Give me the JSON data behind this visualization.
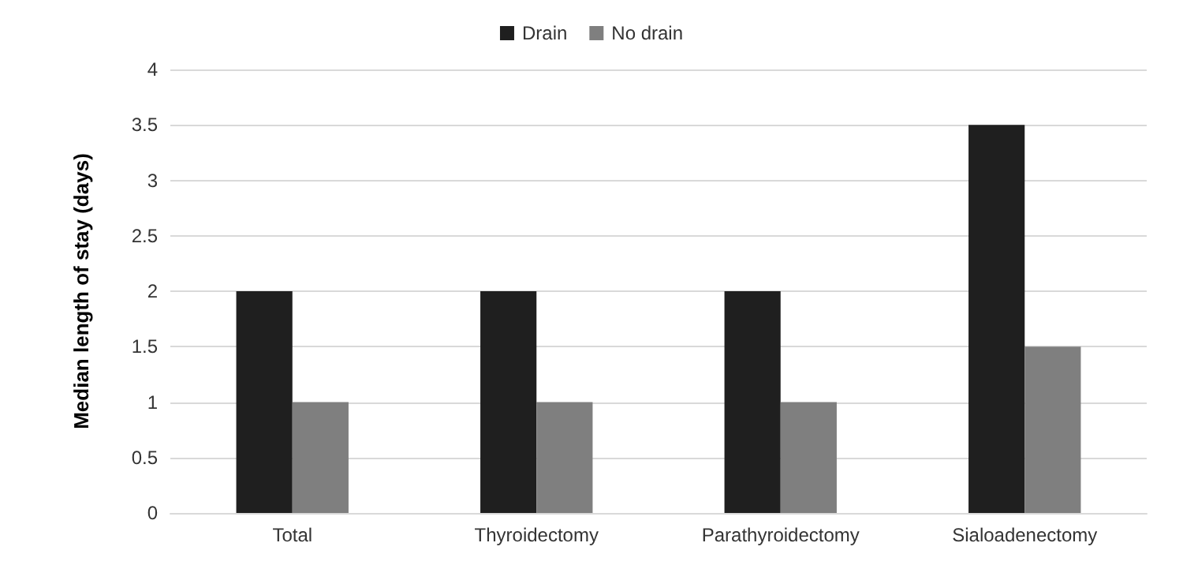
{
  "chart_data": {
    "type": "bar",
    "ylabel": "Median length of stay (days)",
    "categories": [
      "Total",
      "Thyroidectomy",
      "Parathyroidectomy",
      "Sialoadenectomy"
    ],
    "series": [
      {
        "name": "Drain",
        "color": "#1f1f1f",
        "values": [
          2,
          2,
          2,
          3.5
        ]
      },
      {
        "name": "No drain",
        "color": "#7f7f7f",
        "values": [
          1,
          1,
          1,
          1.5
        ]
      }
    ],
    "ylim": [
      0,
      4
    ],
    "yticks": [
      0,
      0.5,
      1,
      1.5,
      2,
      2.5,
      3,
      3.5,
      4
    ],
    "grid": "y",
    "legend": "top"
  }
}
